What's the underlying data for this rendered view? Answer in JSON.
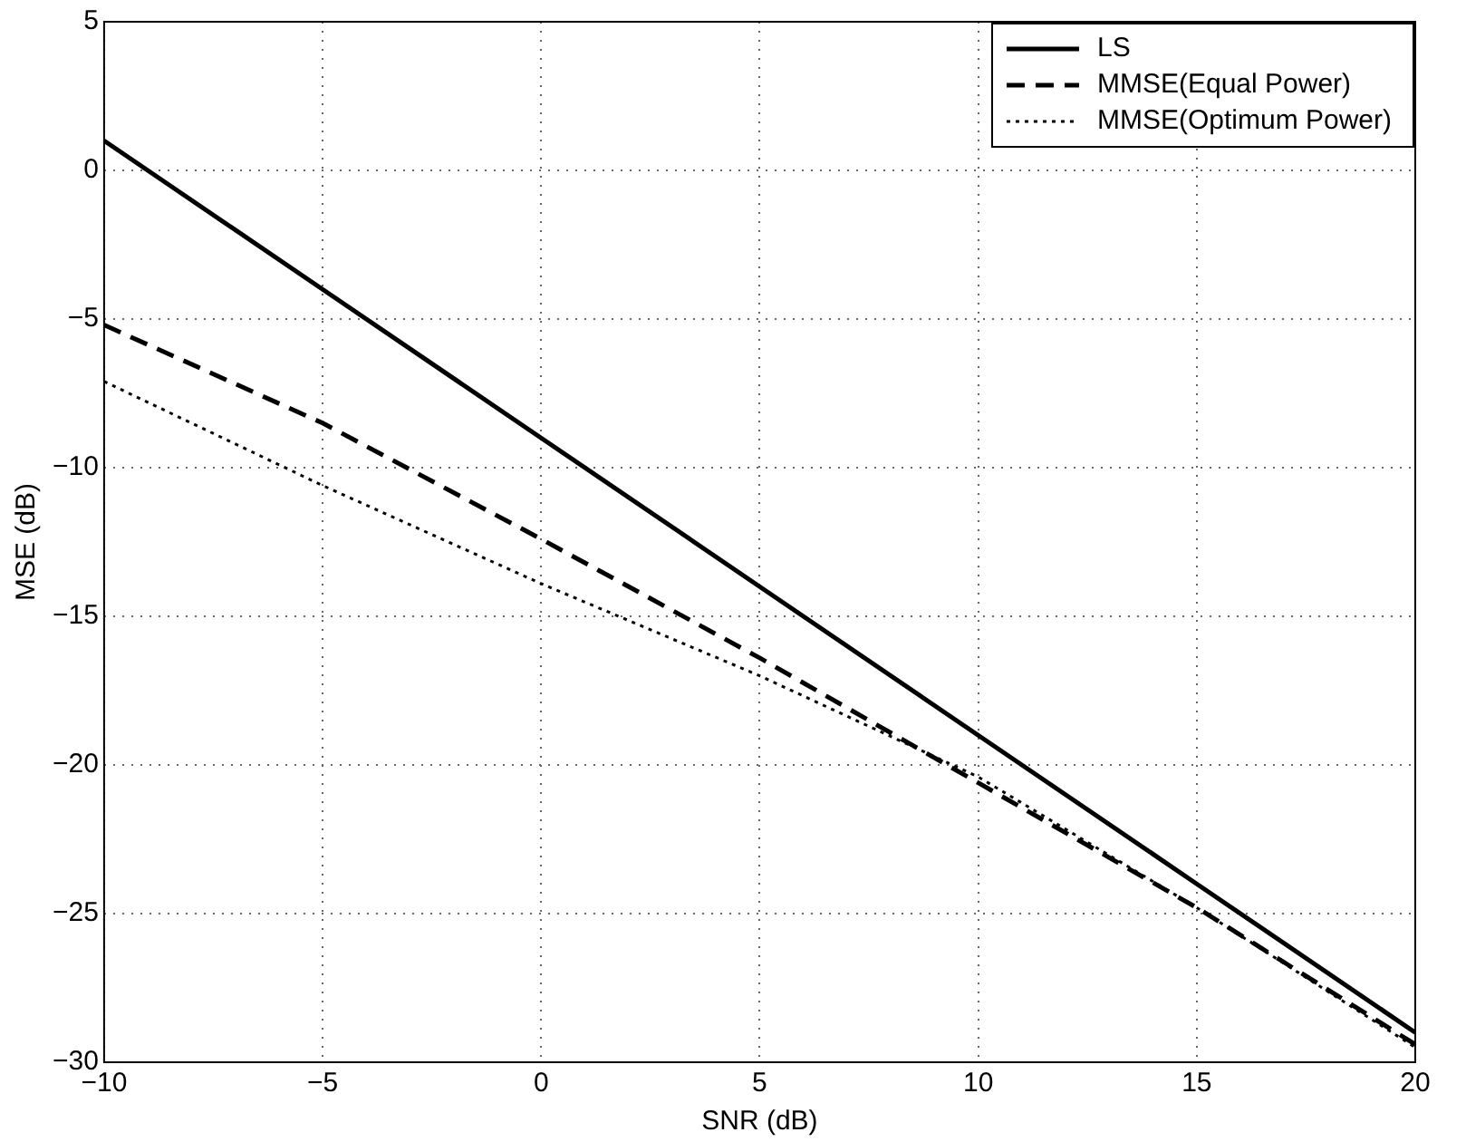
{
  "chart_data": {
    "type": "line",
    "xlabel": "SNR (dB)",
    "ylabel": "MSE (dB)",
    "x": [
      -10,
      -5,
      0,
      5,
      10,
      15,
      20
    ],
    "series": [
      {
        "name": "LS",
        "color": "#000000",
        "line_style": "solid",
        "values": [
          1,
          -4,
          -9,
          -14,
          -19,
          -24,
          -29
        ]
      },
      {
        "name": "MMSE(Equal Power)",
        "color": "#000000",
        "line_style": "dashed",
        "values": [
          -5.2,
          -8.5,
          -12.4,
          -16.4,
          -20.6,
          -24.8,
          -29.4
        ]
      },
      {
        "name": "MMSE(Optimum Power)",
        "color": "#000000",
        "line_style": "dotted",
        "values": [
          -7.1,
          -10.6,
          -13.9,
          -17.0,
          -20.4,
          -24.8,
          -29.5
        ]
      }
    ],
    "xlim": [
      -10,
      20
    ],
    "xticks": [
      -10,
      -5,
      0,
      5,
      10,
      15,
      20
    ],
    "ylim": [
      -30,
      5
    ],
    "yticks": [
      -30,
      -25,
      -20,
      -15,
      -10,
      -5,
      0,
      5
    ],
    "grid": true,
    "legend": "top right",
    "marker": "none"
  }
}
